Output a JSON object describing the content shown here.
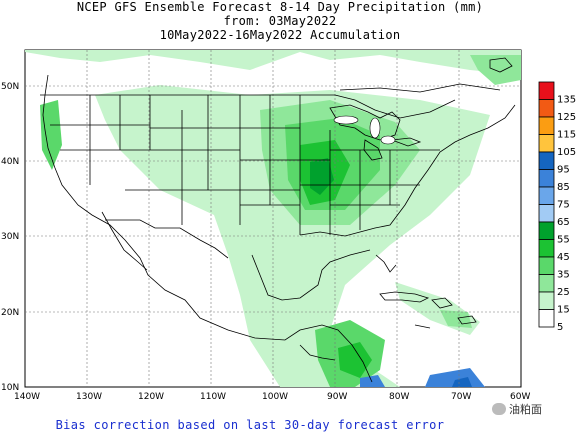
{
  "header": {
    "line1": "NCEP GFS Ensemble Forecast 8-14 Day Precipitation (mm)",
    "line2": "from: 03May2022",
    "line3": "10May2022-16May2022 Accumulation"
  },
  "axes": {
    "lat_labels": [
      "50N",
      "40N",
      "30N",
      "20N",
      "10N"
    ],
    "lon_labels": [
      "140W",
      "130W",
      "120W",
      "110W",
      "100W",
      "90W",
      "80W",
      "70W",
      "60W"
    ]
  },
  "legend": {
    "labels": [
      "135",
      "125",
      "115",
      "105",
      "95",
      "85",
      "75",
      "65",
      "55",
      "45",
      "35",
      "25",
      "15",
      "5"
    ],
    "colors": [
      "#e8101b",
      "#f25a14",
      "#fb9d12",
      "#ffc43d",
      "#1565c0",
      "#3b82d9",
      "#6aa6ea",
      "#a2cbf4",
      "#00a12d",
      "#1cc233",
      "#5ad86a",
      "#8fe79a",
      "#c6f4cc",
      "#ffffff"
    ]
  },
  "footer": {
    "text": "Bias correction based on last 30-day forecast error"
  },
  "watermark": {
    "text": "油粕面"
  }
}
